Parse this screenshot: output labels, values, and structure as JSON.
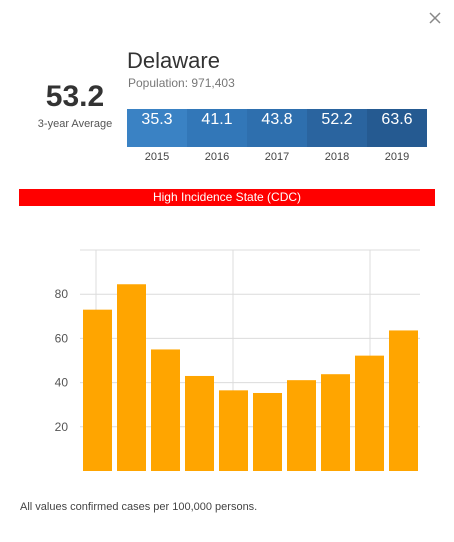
{
  "popup": {
    "state": "Delaware",
    "population": "Population: 971,403",
    "average_value": "53.2",
    "average_label": "3-year Average",
    "banner": "High Incidence State (CDC)",
    "footnote": "All values confirmed cases per 100,000 persons.",
    "close_icon": "close-icon"
  },
  "year_table": [
    {
      "year": "2015",
      "value": "35.3",
      "color": "#3a82c4"
    },
    {
      "year": "2016",
      "value": "41.1",
      "color": "#3277b8"
    },
    {
      "year": "2017",
      "value": "43.8",
      "color": "#2e6fae"
    },
    {
      "year": "2018",
      "value": "52.2",
      "color": "#2a649f"
    },
    {
      "year": "2019",
      "value": "63.6",
      "color": "#255a91"
    }
  ],
  "chart_data": {
    "type": "bar",
    "values": [
      73,
      84.5,
      55,
      43,
      36.5,
      35.3,
      41.1,
      43.8,
      52.2,
      63.6
    ],
    "yticks": [
      "20",
      "40",
      "60",
      "80"
    ],
    "ylim": [
      0,
      100
    ],
    "bar_color": "#ffa500",
    "grid": true
  }
}
